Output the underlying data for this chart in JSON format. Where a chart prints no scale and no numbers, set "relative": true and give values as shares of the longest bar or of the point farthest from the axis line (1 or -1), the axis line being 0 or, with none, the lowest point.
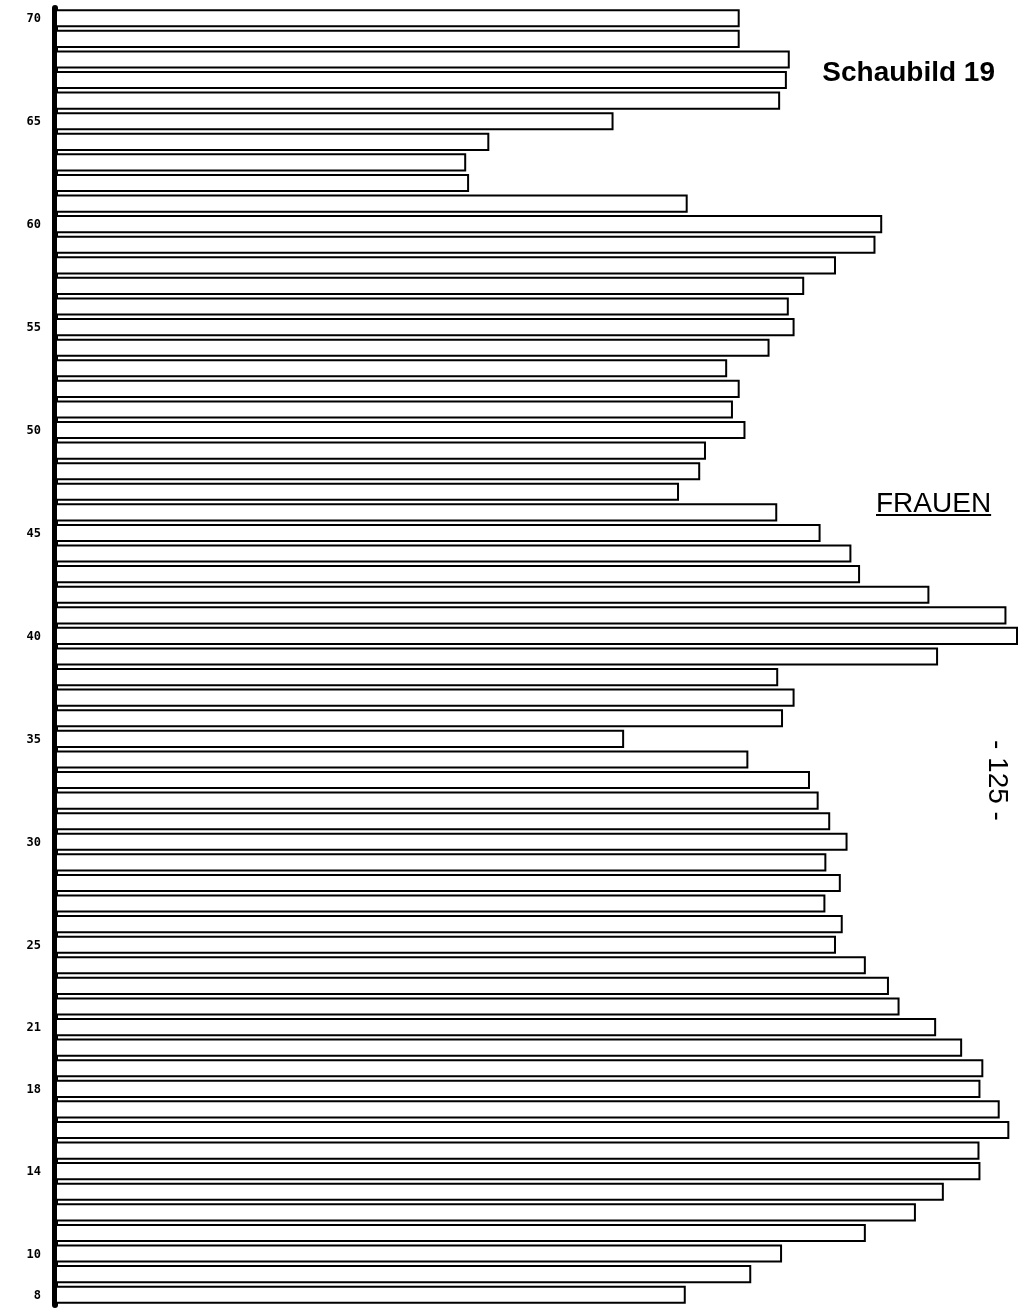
{
  "chart_data": {
    "type": "bar",
    "orientation": "horizontal",
    "relative": true,
    "title": "Schaubild 19",
    "annotations": [
      "FRAUEN",
      "- 125 -"
    ],
    "color": "#ffffff",
    "categories": [
      "70",
      null,
      null,
      null,
      null,
      "65",
      null,
      null,
      null,
      null,
      "60",
      null,
      null,
      null,
      null,
      "55",
      null,
      null,
      null,
      null,
      "50",
      null,
      null,
      null,
      null,
      "45",
      null,
      null,
      null,
      null,
      "40",
      null,
      null,
      null,
      null,
      "35",
      null,
      null,
      null,
      null,
      "30",
      null,
      null,
      null,
      null,
      "25",
      null,
      null,
      null,
      "21",
      null,
      null,
      "18",
      null,
      null,
      null,
      "14",
      null,
      null,
      null,
      "10",
      null,
      "8"
    ],
    "values": [
      0.711,
      0.711,
      0.763,
      0.76,
      0.753,
      0.58,
      0.451,
      0.427,
      0.43,
      0.657,
      0.859,
      0.852,
      0.811,
      0.778,
      0.762,
      0.768,
      0.742,
      0.698,
      0.711,
      0.704,
      0.717,
      0.676,
      0.67,
      0.648,
      0.75,
      0.795,
      0.827,
      0.836,
      0.908,
      0.988,
      1,
      0.917,
      0.751,
      0.768,
      0.756,
      0.591,
      0.72,
      0.784,
      0.793,
      0.805,
      0.823,
      0.801,
      0.816,
      0.8,
      0.818,
      0.811,
      0.842,
      0.866,
      0.877,
      0.915,
      0.942,
      0.964,
      0.961,
      0.981,
      0.991,
      0.96,
      0.961,
      0.923,
      0.894,
      0.842,
      0.755,
      0.723,
      0.655
    ],
    "data_labels": false
  }
}
